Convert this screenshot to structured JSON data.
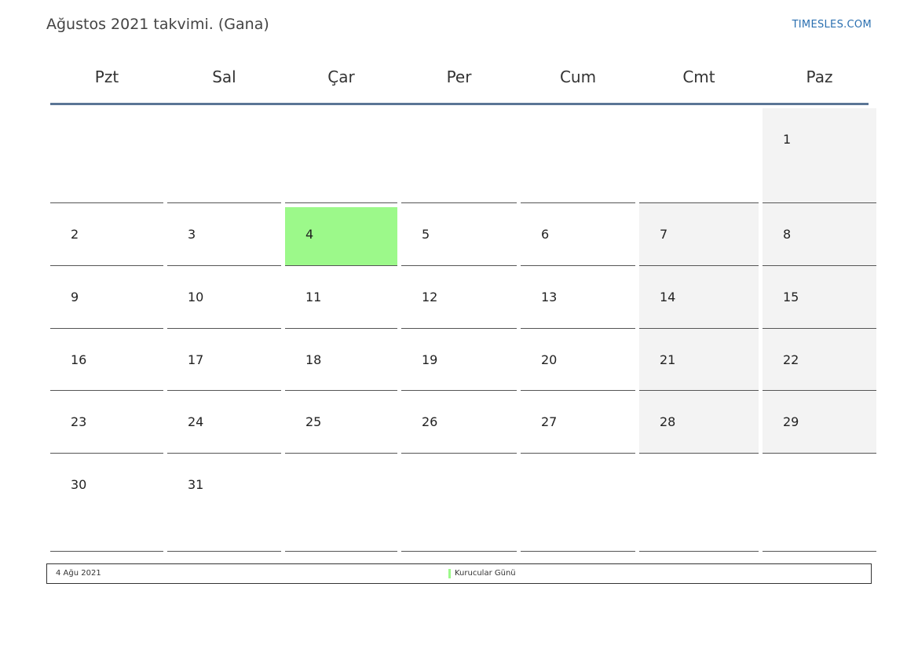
{
  "title": "Ağustos 2021 takvimi. (Gana)",
  "site": "TIMESLES.COM",
  "weekdays": [
    "Pzt",
    "Sal",
    "Çar",
    "Per",
    "Cum",
    "Cmt",
    "Paz"
  ],
  "weeks": [
    [
      "",
      "",
      "",
      "",
      "",
      "",
      "1"
    ],
    [
      "2",
      "3",
      "4",
      "5",
      "6",
      "7",
      "8"
    ],
    [
      "9",
      "10",
      "11",
      "12",
      "13",
      "14",
      "15"
    ],
    [
      "16",
      "17",
      "18",
      "19",
      "20",
      "21",
      "22"
    ],
    [
      "23",
      "24",
      "25",
      "26",
      "27",
      "28",
      "29"
    ],
    [
      "30",
      "31",
      "",
      "",
      "",
      "",
      ""
    ]
  ],
  "holiday_day": "4",
  "holiday_color": "#9cf98a",
  "weekend_color": "#f3f3f3",
  "legend": {
    "date": "4 Ağu 2021",
    "name": "Kurucular Günü"
  }
}
